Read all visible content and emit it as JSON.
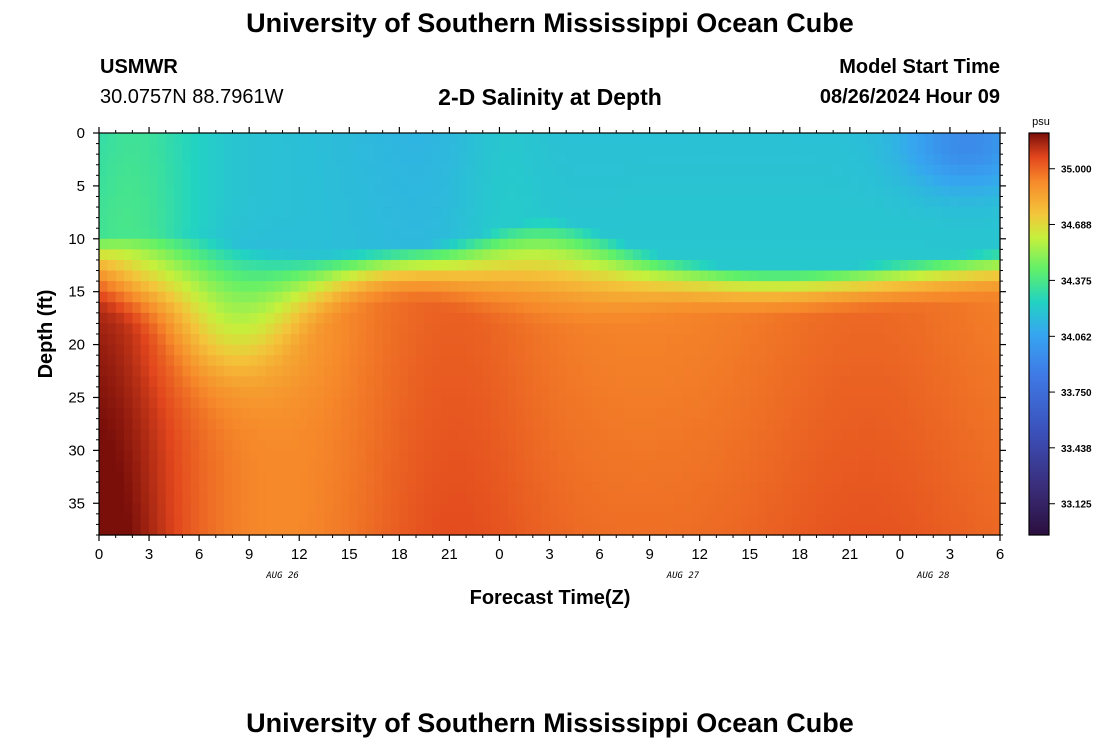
{
  "page": {
    "title": "University of Southern Mississippi Ocean Cube",
    "footer_title": "University of Southern Mississippi Ocean Cube"
  },
  "station": {
    "name": "USMWR",
    "coords": "30.0757N  88.7961W"
  },
  "model": {
    "label": "Model Start Time",
    "time": "08/26/2024 Hour 09"
  },
  "chart_data": {
    "type": "heatmap",
    "title": "2-D Salinity at Depth",
    "xlabel": "Forecast Time(Z)",
    "ylabel": "Depth (ft)",
    "x_hours_from_start": [
      0,
      54
    ],
    "xtick_labels": [
      "0",
      "3",
      "6",
      "9",
      "12",
      "15",
      "18",
      "21",
      "0",
      "3",
      "6",
      "9",
      "12",
      "15",
      "18",
      "21",
      "0",
      "3",
      "6"
    ],
    "date_labels": [
      {
        "label": "AUG 26",
        "at_hour": 11
      },
      {
        "label": "AUG 27",
        "at_hour": 35
      },
      {
        "label": "AUG 28",
        "at_hour": 50
      }
    ],
    "ylim": [
      0,
      38
    ],
    "ytick_labels": [
      "0",
      "5",
      "10",
      "15",
      "20",
      "25",
      "30",
      "35"
    ],
    "colorbar": {
      "unit": "psu",
      "range": [
        32.95,
        35.2
      ],
      "tick_labels": [
        "35.000",
        "34.688",
        "34.375",
        "34.062",
        "33.750",
        "33.438",
        "33.125"
      ]
    },
    "description": "Surface layer (0-8 ft) ~34.1-34.4 psu; halocline 9-15 ft; bottom (20-38 ft) ~34.85-35.1 psu"
  }
}
